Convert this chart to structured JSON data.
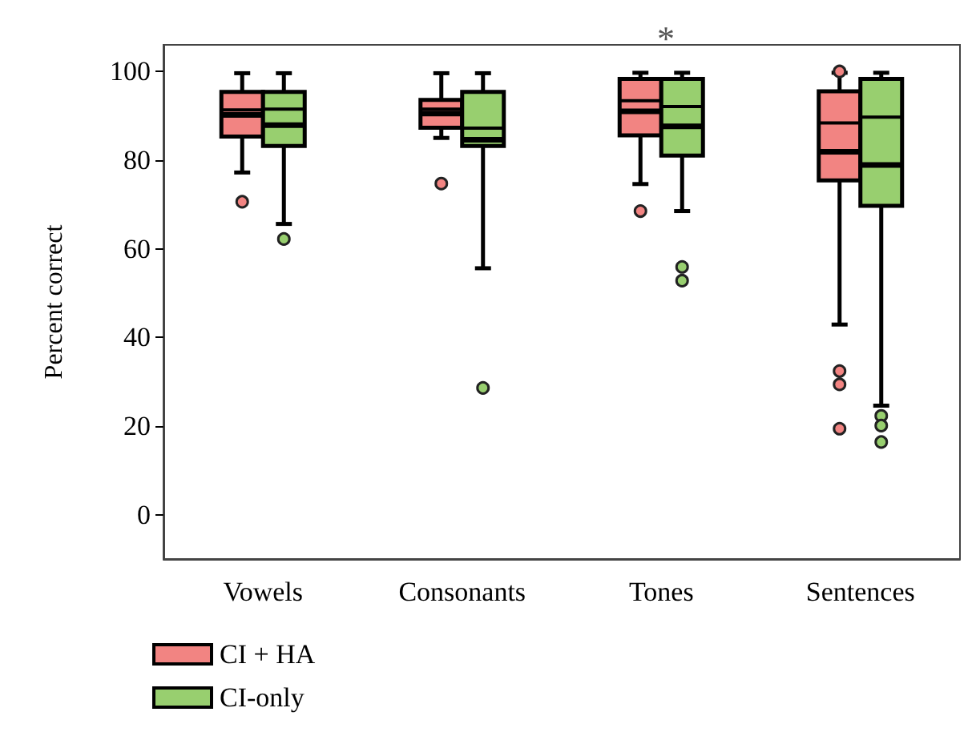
{
  "chart_data": {
    "type": "box",
    "ylabel": "Percent correct",
    "categories": [
      "Vowels",
      "Consonants",
      "Tones",
      "Sentences"
    ],
    "ylim": [
      -10,
      106
    ],
    "yticks": [
      0,
      20,
      40,
      60,
      80,
      100
    ],
    "grid": false,
    "legend": "bottom left",
    "annotations": [
      "*"
    ],
    "series": [
      {
        "name": "CI + HA",
        "color": "#f28482",
        "boxes": [
          {
            "low": 77.2,
            "q1": 85.3,
            "median": 90.2,
            "q3": 95.4,
            "high": 99.6,
            "mean": 91.3,
            "outliers": [
              70.6
            ]
          },
          {
            "low": 85,
            "q1": 87.3,
            "median": 90.5,
            "q3": 93.6,
            "high": 99.6,
            "mean": 91.5,
            "outliers": [
              74.7
            ]
          },
          {
            "low": 74.6,
            "q1": 85.6,
            "median": 91,
            "q3": 98.3,
            "high": 99.7,
            "mean": 93.4,
            "outliers": [
              68.5
            ]
          },
          {
            "low": 42.9,
            "q1": 75.4,
            "median": 81.9,
            "q3": 95.5,
            "high": 99.7,
            "mean": 88.4,
            "outliers": [
              100,
              32.4,
              29.4,
              19.4
            ]
          }
        ]
      },
      {
        "name": "CI-only",
        "color": "#98cf6f",
        "boxes": [
          {
            "low": 65.6,
            "q1": 83.2,
            "median": 87.9,
            "q3": 95.4,
            "high": 99.6,
            "mean": 91.5,
            "outliers": [
              62.2
            ]
          },
          {
            "low": 55.6,
            "q1": 83.2,
            "median": 84.6,
            "q3": 95.4,
            "high": 99.6,
            "mean": 87.2,
            "outliers": [
              28.6
            ]
          },
          {
            "low": 68.5,
            "q1": 81,
            "median": 87.6,
            "q3": 98.3,
            "high": 99.7,
            "mean": 92.1,
            "outliers": [
              55.9,
              52.8
            ]
          },
          {
            "low": 24.6,
            "q1": 69.7,
            "median": 78.9,
            "q3": 98.3,
            "high": 99.7,
            "mean": 89.7,
            "outliers": [
              22.3,
              20.1,
              16.4
            ]
          }
        ]
      }
    ]
  }
}
